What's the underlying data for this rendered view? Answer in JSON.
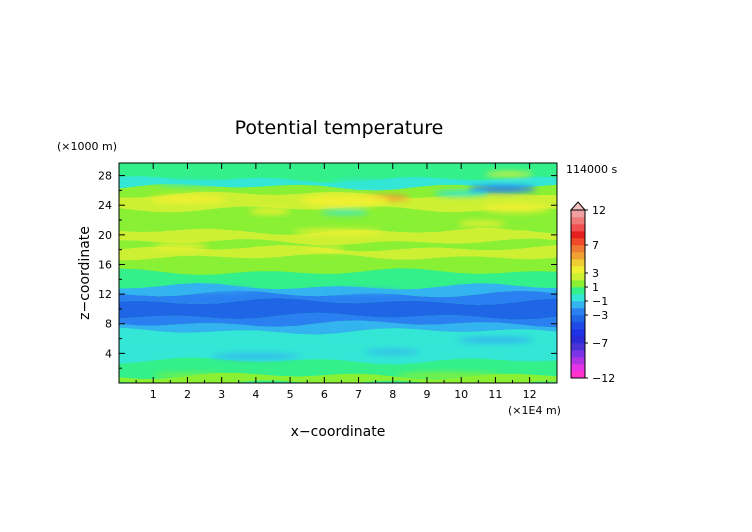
{
  "chart_data": {
    "type": "heatmap",
    "title": "Potential temperature",
    "xlabel": "x−coordinate",
    "ylabel": "z−coordinate",
    "x_unit": "(×1E4 m)",
    "y_unit": "(×1000 m)",
    "time_label": "114000 s",
    "xlim": [
      0,
      12.8
    ],
    "ylim": [
      0,
      29.7
    ],
    "x_ticks": [
      "1",
      "2",
      "3",
      "4",
      "5",
      "6",
      "7",
      "8",
      "9",
      "10",
      "11",
      "12"
    ],
    "y_ticks": [
      "4",
      "8",
      "12",
      "16",
      "20",
      "24",
      "28"
    ],
    "colorbar": {
      "levels": [
        -12,
        -11,
        -10,
        -9,
        -8,
        -7,
        -6,
        -5,
        -4,
        -3,
        -2,
        -1,
        0,
        1,
        2,
        3,
        4,
        5,
        6,
        7,
        8,
        9,
        10,
        11,
        12
      ],
      "labels": [
        "12",
        "7",
        "3",
        "1",
        "−1",
        "−3",
        "−7",
        "−12"
      ],
      "colors": [
        "#ff33cc",
        "#e633e6",
        "#b033e6",
        "#7a33e6",
        "#4a33d6",
        "#2a2ad6",
        "#1f33e6",
        "#1f4ae6",
        "#1f66e6",
        "#2a80f0",
        "#33b3f0",
        "#33e6d6",
        "#33f08a",
        "#8af033",
        "#cdf033",
        "#f0f033",
        "#f0cd33",
        "#f0a033",
        "#f07a33",
        "#f04a2a",
        "#e61f1f",
        "#f05050",
        "#f07a7a",
        "#f0a0a0",
        "#f5c0c0"
      ]
    },
    "bands": [
      {
        "z": [
          0,
          1.0
        ],
        "value": 0.6
      },
      {
        "z": [
          1.0,
          3.0
        ],
        "value": 0.4
      },
      {
        "z": [
          3.0,
          5.5
        ],
        "value": -0.6
      },
      {
        "z": [
          5.5,
          7.0
        ],
        "value": -1.4
      },
      {
        "z": [
          7.0,
          8.0
        ],
        "value": -2.2
      },
      {
        "z": [
          8.0,
          9.0
        ],
        "value": -3.2
      },
      {
        "z": [
          9.0,
          11.0
        ],
        "value": -3.8
      },
      {
        "z": [
          11.0,
          12.0
        ],
        "value": -3.2
      },
      {
        "z": [
          12.0,
          13.0
        ],
        "value": -1.6
      },
      {
        "z": [
          13.0,
          14.0
        ],
        "value": -0.2
      },
      {
        "z": [
          14.0,
          15.0
        ],
        "value": 0.4
      },
      {
        "z": [
          15.0,
          16.0
        ],
        "value": 1.0
      },
      {
        "z": [
          16.0,
          17.0
        ],
        "value": 0.6
      },
      {
        "z": [
          17.0,
          18.2
        ],
        "value": 1.6
      },
      {
        "z": [
          18.2,
          19.0
        ],
        "value": 1.0
      },
      {
        "z": [
          19.0,
          20.5
        ],
        "value": 2.2
      },
      {
        "z": [
          20.5,
          21.0
        ],
        "value": 1.2
      },
      {
        "z": [
          21.0,
          22.0
        ],
        "value": 0.6
      },
      {
        "z": [
          22.0,
          23.5
        ],
        "value": 1.4
      },
      {
        "z": [
          23.5,
          25.5
        ],
        "value": 2.4
      },
      {
        "z": [
          25.5,
          26.5
        ],
        "value": 0.8
      },
      {
        "z": [
          26.5,
          27.5
        ],
        "value": -0.6
      },
      {
        "z": [
          27.5,
          28.5
        ],
        "value": 0.2
      },
      {
        "z": [
          28.5,
          29.7
        ],
        "value": -0.2
      }
    ],
    "features": [
      {
        "x": 7.6,
        "z": 25.0,
        "w": 1.8,
        "h": 0.9,
        "value": 4.5
      },
      {
        "x": 6.6,
        "z": 24.6,
        "w": 2.6,
        "h": 1.6,
        "value": 3.2
      },
      {
        "x": 2.0,
        "z": 24.8,
        "w": 2.2,
        "h": 1.2,
        "value": 3.0
      },
      {
        "x": 4.4,
        "z": 23.2,
        "w": 1.2,
        "h": 0.8,
        "value": 3.0
      },
      {
        "x": 11.6,
        "z": 23.6,
        "w": 2.0,
        "h": 1.2,
        "value": 3.0
      },
      {
        "x": 6.4,
        "z": 20.4,
        "w": 2.6,
        "h": 0.8,
        "value": 3.2
      },
      {
        "x": 10.6,
        "z": 21.5,
        "w": 1.4,
        "h": 0.7,
        "value": 3.0
      },
      {
        "x": 1.8,
        "z": 18.4,
        "w": 1.6,
        "h": 0.8,
        "value": 3.0
      },
      {
        "x": 6.0,
        "z": 18.0,
        "w": 1.2,
        "h": 0.6,
        "value": 2.8
      },
      {
        "x": 11.2,
        "z": 26.2,
        "w": 2.0,
        "h": 1.0,
        "value": -2.6
      },
      {
        "x": 10.0,
        "z": 25.6,
        "w": 1.6,
        "h": 0.8,
        "value": -1.4
      },
      {
        "x": 7.0,
        "z": 27.0,
        "w": 1.6,
        "h": 0.8,
        "value": -1.4
      },
      {
        "x": 2.0,
        "z": 27.0,
        "w": 1.8,
        "h": 0.7,
        "value": -1.2
      },
      {
        "x": 6.6,
        "z": 23.0,
        "w": 1.4,
        "h": 0.6,
        "value": -1.2
      },
      {
        "x": 11.4,
        "z": 28.2,
        "w": 1.4,
        "h": 0.6,
        "value": 2.6
      },
      {
        "x": 4.0,
        "z": 3.6,
        "w": 2.6,
        "h": 0.7,
        "value": -1.6
      },
      {
        "x": 8.0,
        "z": 4.2,
        "w": 1.6,
        "h": 0.6,
        "value": -1.6
      },
      {
        "x": 11.0,
        "z": 5.8,
        "w": 2.2,
        "h": 0.8,
        "value": -1.6
      },
      {
        "x": 9.6,
        "z": 1.0,
        "w": 3.0,
        "h": 0.8,
        "value": 1.4
      },
      {
        "x": 2.0,
        "z": 1.0,
        "w": 2.0,
        "h": 0.6,
        "value": 1.4
      },
      {
        "x": 7.2,
        "z": 12.4,
        "w": 2.2,
        "h": 0.5,
        "value": -2.2
      },
      {
        "x": 3.0,
        "z": 12.6,
        "w": 2.0,
        "h": 0.5,
        "value": -2.2
      }
    ]
  }
}
